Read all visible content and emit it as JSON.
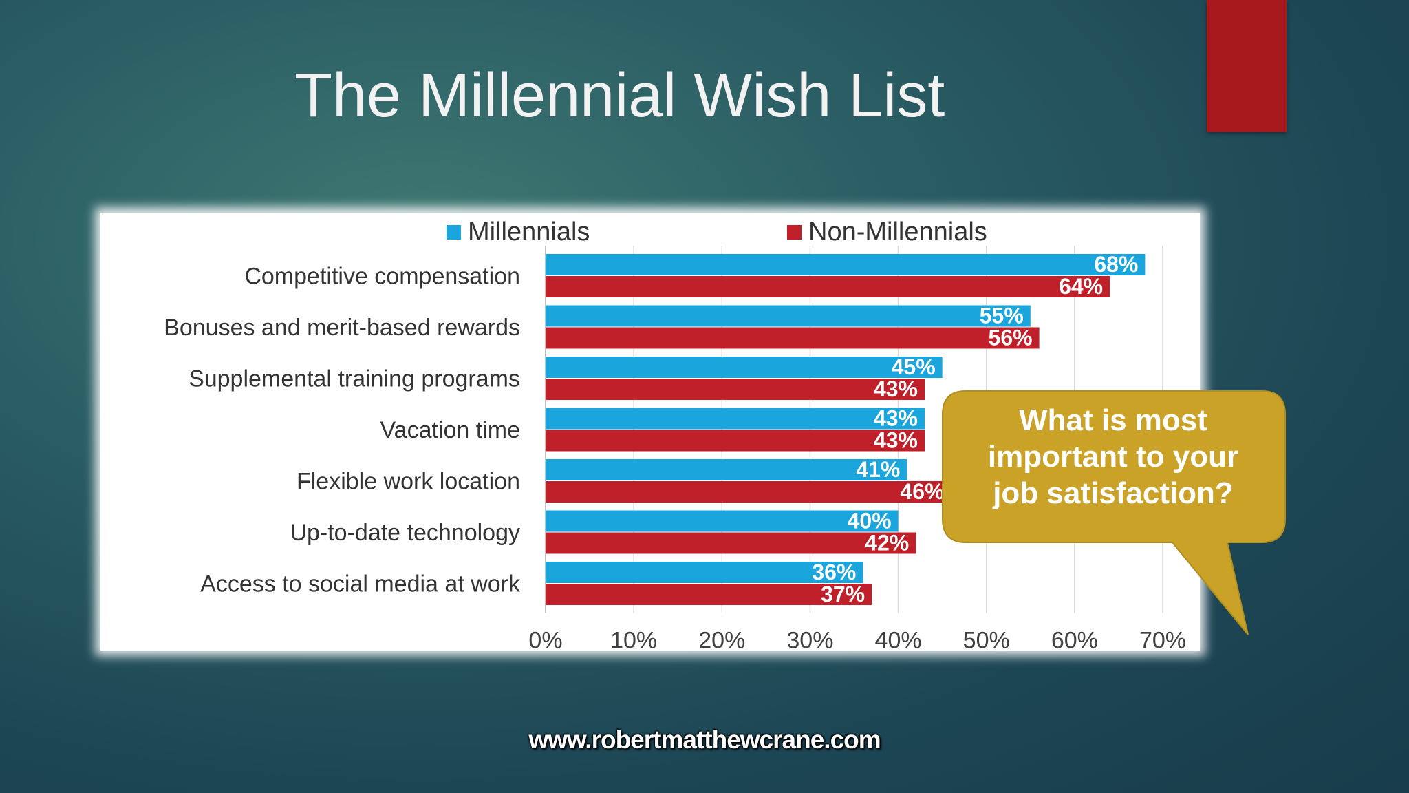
{
  "slide": {
    "title": "The Millennial Wish List",
    "website": "www.robertmatthewcrane.com"
  },
  "callout": {
    "lines": [
      "What is most",
      "important to your",
      "job satisfaction?"
    ]
  },
  "colors": {
    "millennials": "#1aa6dc",
    "non_millennials": "#c0202a",
    "accent": "#a7191c",
    "callout": "#c9a227"
  },
  "chart_data": {
    "type": "bar",
    "orientation": "horizontal",
    "categories": [
      "Competitive compensation",
      "Bonuses and merit-based rewards",
      "Supplemental training programs",
      "Vacation time",
      "Flexible work location",
      "Up-to-date technology",
      "Access to social media at work"
    ],
    "series": [
      {
        "name": "Millennials",
        "values": [
          68,
          55,
          45,
          43,
          41,
          40,
          36
        ]
      },
      {
        "name": "Non-Millennials",
        "values": [
          64,
          56,
          43,
          43,
          46,
          42,
          37
        ]
      }
    ],
    "data_labels": [
      [
        "68%",
        "55%",
        "45%",
        "43%",
        "41%",
        "40%",
        "36%"
      ],
      [
        "64%",
        "56%",
        "43%",
        "43%",
        "46%",
        "42%",
        "37%"
      ]
    ],
    "xlim": [
      0,
      70
    ],
    "xticks": [
      "0%",
      "10%",
      "20%",
      "30%",
      "40%",
      "50%",
      "60%",
      "70%"
    ],
    "grid": true,
    "legend_position": "top"
  }
}
